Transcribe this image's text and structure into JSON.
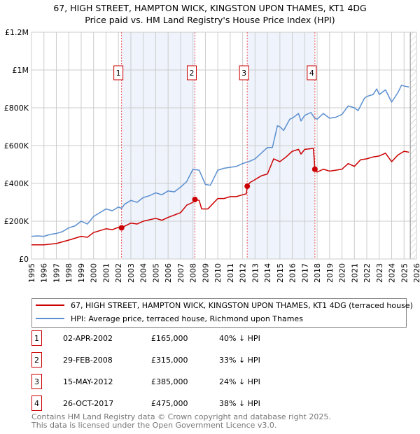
{
  "chart_data": {
    "type": "line",
    "title": "67, HIGH STREET, HAMPTON WICK, KINGSTON UPON THAMES, KT1 4DG",
    "subtitle": "Price paid vs. HM Land Registry's House Price Index (HPI)",
    "xlabel": "",
    "ylabel": "",
    "xlim": [
      1995,
      2026
    ],
    "ylim": [
      0,
      1200000
    ],
    "y_ticks": [
      {
        "v": 0,
        "label": "£0"
      },
      {
        "v": 200000,
        "label": "£200K"
      },
      {
        "v": 400000,
        "label": "£400K"
      },
      {
        "v": 600000,
        "label": "£600K"
      },
      {
        "v": 800000,
        "label": "£800K"
      },
      {
        "v": 1000000,
        "label": "£1M"
      },
      {
        "v": 1200000,
        "label": "£1.2M"
      }
    ],
    "x_ticks": [
      "1995",
      "1996",
      "1997",
      "1998",
      "1999",
      "2000",
      "2001",
      "2002",
      "2003",
      "2004",
      "2005",
      "2006",
      "2007",
      "2008",
      "2009",
      "2010",
      "2011",
      "2012",
      "2013",
      "2014",
      "2015",
      "2016",
      "2017",
      "2018",
      "2019",
      "2020",
      "2021",
      "2022",
      "2023",
      "2024",
      "2025",
      "2026"
    ],
    "grid": true,
    "projection_start": 2025.5,
    "series": [
      {
        "name": "67, HIGH STREET, HAMPTON WICK, KINGSTON UPON THAMES, KT1 4DG (terraced house)",
        "color": "#cc0000",
        "x": [
          1995,
          1996,
          1997,
          1998,
          1999,
          1999.5,
          2000,
          2001,
          2001.5,
          2002,
          2002.25,
          2003,
          2003.5,
          2004,
          2005,
          2005.5,
          2006,
          2007,
          2007.5,
          2008,
          2008.16,
          2008.5,
          2008.7,
          2009.2,
          2010,
          2010.5,
          2011,
          2011.5,
          2012,
          2012.3,
          2012.37,
          2012.6,
          2013,
          2013.5,
          2014,
          2014.5,
          2015,
          2015.5,
          2016,
          2016.5,
          2016.7,
          2017,
          2017.7,
          2017.82,
          2018,
          2018.5,
          2019,
          2019.5,
          2020,
          2020.5,
          2021,
          2021.5,
          2022,
          2022.5,
          2023,
          2023.5,
          2024,
          2024.5,
          2025,
          2025.4
        ],
        "y": [
          75000,
          75000,
          82000,
          100000,
          120000,
          115000,
          140000,
          160000,
          155000,
          168000,
          165000,
          190000,
          185000,
          200000,
          215000,
          205000,
          220000,
          245000,
          285000,
          300000,
          315000,
          310000,
          265000,
          265000,
          320000,
          320000,
          330000,
          330000,
          340000,
          345000,
          385000,
          405000,
          420000,
          440000,
          450000,
          530000,
          515000,
          540000,
          570000,
          580000,
          555000,
          580000,
          585000,
          475000,
          460000,
          475000,
          465000,
          470000,
          475000,
          505000,
          490000,
          525000,
          530000,
          540000,
          545000,
          560000,
          515000,
          550000,
          570000,
          565000
        ]
      },
      {
        "name": "HPI: Average price, terraced house, Richmond upon Thames",
        "color": "#5b8fd0",
        "x": [
          1995,
          1995.5,
          1996,
          1996.5,
          1997,
          1997.5,
          1998,
          1998.5,
          1999,
          1999.5,
          2000,
          2000.5,
          2001,
          2001.5,
          2002,
          2002.25,
          2002.5,
          2003,
          2003.5,
          2004,
          2004.5,
          2005,
          2005.5,
          2006,
          2006.5,
          2007,
          2007.5,
          2008,
          2008.5,
          2009,
          2009.4,
          2010,
          2010.5,
          2011,
          2011.5,
          2012,
          2012.5,
          2013,
          2013.5,
          2014,
          2014.4,
          2014.8,
          2015,
          2015.3,
          2015.8,
          2016,
          2016.5,
          2016.7,
          2017,
          2017.5,
          2017.8,
          2018,
          2018.5,
          2019,
          2019.5,
          2020,
          2020.5,
          2021,
          2021.3,
          2021.8,
          2022,
          2022.5,
          2022.8,
          2023,
          2023.5,
          2024,
          2024.5,
          2024.8,
          2025,
          2025.4
        ],
        "y": [
          120000,
          122000,
          120000,
          130000,
          135000,
          145000,
          165000,
          175000,
          200000,
          185000,
          225000,
          245000,
          265000,
          255000,
          275000,
          268000,
          290000,
          310000,
          300000,
          325000,
          335000,
          350000,
          340000,
          360000,
          355000,
          380000,
          410000,
          475000,
          470000,
          395000,
          390000,
          470000,
          480000,
          485000,
          490000,
          505000,
          515000,
          530000,
          560000,
          590000,
          590000,
          705000,
          700000,
          680000,
          740000,
          745000,
          770000,
          730000,
          760000,
          775000,
          745000,
          740000,
          770000,
          745000,
          750000,
          765000,
          810000,
          800000,
          785000,
          850000,
          860000,
          870000,
          900000,
          870000,
          895000,
          830000,
          880000,
          920000,
          915000,
          910000
        ]
      }
    ],
    "sales": [
      {
        "label": "1",
        "x": 2002.25,
        "y": 165000,
        "date": "02-APR-2002",
        "price": "£165,000",
        "hpi": "40% ↓ HPI"
      },
      {
        "label": "2",
        "x": 2008.16,
        "y": 315000,
        "date": "29-FEB-2008",
        "price": "£315,000",
        "hpi": "33% ↓ HPI"
      },
      {
        "label": "3",
        "x": 2012.37,
        "y": 385000,
        "date": "15-MAY-2012",
        "price": "£385,000",
        "hpi": "24% ↓ HPI"
      },
      {
        "label": "4",
        "x": 2017.82,
        "y": 475000,
        "date": "26-OCT-2017",
        "price": "£475,000",
        "hpi": "38% ↓ HPI"
      }
    ],
    "legend_placement": "below"
  },
  "footer": {
    "line1": "Contains HM Land Registry data © Crown copyright and database right 2025.",
    "line2": "This data is licensed under the Open Government Licence v3.0."
  }
}
